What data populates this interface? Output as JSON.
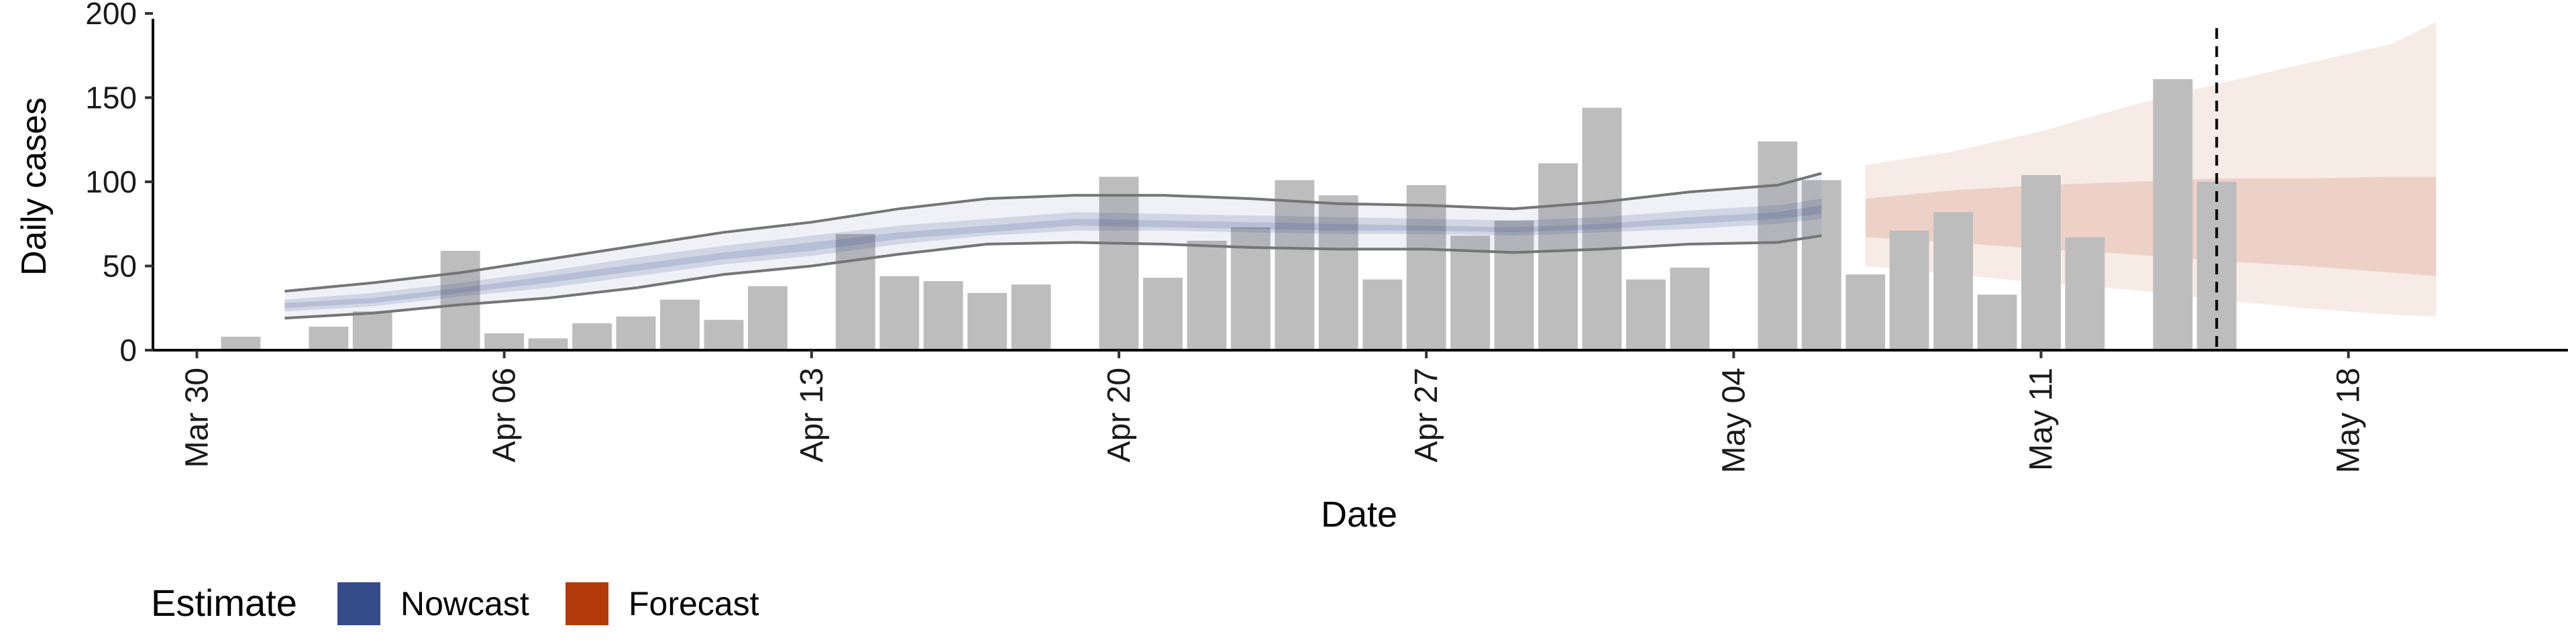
{
  "chart_data": {
    "type": "bar",
    "xlabel": "Date",
    "ylabel": "Daily cases",
    "ylim": [
      0,
      200
    ],
    "xlim": [
      "2020-03-29",
      "2020-05-23"
    ],
    "x_tick_labels": [
      {
        "date": "2020-03-30",
        "label": "Mar 30"
      },
      {
        "date": "2020-04-06",
        "label": "Apr 06"
      },
      {
        "date": "2020-04-13",
        "label": "Apr 13"
      },
      {
        "date": "2020-04-20",
        "label": "Apr 20"
      },
      {
        "date": "2020-04-27",
        "label": "Apr 27"
      },
      {
        "date": "2020-05-04",
        "label": "May 04"
      },
      {
        "date": "2020-05-11",
        "label": "May 11"
      },
      {
        "date": "2020-05-18",
        "label": "May 18"
      }
    ],
    "y_tick_labels": [
      "0",
      "50",
      "100",
      "150",
      "200"
    ],
    "y_ticks": [
      0,
      50,
      100,
      150,
      200
    ],
    "grid": false,
    "reference_line": {
      "date": "2020-05-15",
      "style": "dashed"
    },
    "bars": [
      {
        "date": "2020-03-31",
        "value": 8
      },
      {
        "date": "2020-04-02",
        "value": 14
      },
      {
        "date": "2020-04-03",
        "value": 23
      },
      {
        "date": "2020-04-05",
        "value": 59
      },
      {
        "date": "2020-04-06",
        "value": 10
      },
      {
        "date": "2020-04-07",
        "value": 7
      },
      {
        "date": "2020-04-08",
        "value": 16
      },
      {
        "date": "2020-04-09",
        "value": 20
      },
      {
        "date": "2020-04-10",
        "value": 30
      },
      {
        "date": "2020-04-11",
        "value": 18
      },
      {
        "date": "2020-04-12",
        "value": 38
      },
      {
        "date": "2020-04-14",
        "value": 69
      },
      {
        "date": "2020-04-15",
        "value": 44
      },
      {
        "date": "2020-04-16",
        "value": 41
      },
      {
        "date": "2020-04-17",
        "value": 34
      },
      {
        "date": "2020-04-18",
        "value": 39
      },
      {
        "date": "2020-04-20",
        "value": 103
      },
      {
        "date": "2020-04-21",
        "value": 43
      },
      {
        "date": "2020-04-22",
        "value": 65
      },
      {
        "date": "2020-04-23",
        "value": 73
      },
      {
        "date": "2020-04-24",
        "value": 101
      },
      {
        "date": "2020-04-25",
        "value": 92
      },
      {
        "date": "2020-04-26",
        "value": 42
      },
      {
        "date": "2020-04-27",
        "value": 98
      },
      {
        "date": "2020-04-28",
        "value": 68
      },
      {
        "date": "2020-04-29",
        "value": 77
      },
      {
        "date": "2020-04-30",
        "value": 111
      },
      {
        "date": "2020-05-01",
        "value": 144
      },
      {
        "date": "2020-05-02",
        "value": 42
      },
      {
        "date": "2020-05-03",
        "value": 49
      },
      {
        "date": "2020-05-05",
        "value": 124
      },
      {
        "date": "2020-05-06",
        "value": 101
      },
      {
        "date": "2020-05-07",
        "value": 45
      },
      {
        "date": "2020-05-08",
        "value": 71
      },
      {
        "date": "2020-05-09",
        "value": 82
      },
      {
        "date": "2020-05-10",
        "value": 33
      },
      {
        "date": "2020-05-11",
        "value": 104
      },
      {
        "date": "2020-05-12",
        "value": 67
      },
      {
        "date": "2020-05-14",
        "value": 161
      },
      {
        "date": "2020-05-15",
        "value": 100
      }
    ],
    "nowcast": {
      "dates": [
        "2020-04-01",
        "2020-04-03",
        "2020-04-05",
        "2020-04-07",
        "2020-04-09",
        "2020-04-11",
        "2020-04-13",
        "2020-04-15",
        "2020-04-17",
        "2020-04-19",
        "2020-04-21",
        "2020-04-23",
        "2020-04-25",
        "2020-04-27",
        "2020-04-29",
        "2020-05-01",
        "2020-05-03",
        "2020-05-05",
        "2020-05-06"
      ],
      "upper_90": [
        35,
        40,
        46,
        54,
        62,
        70,
        76,
        84,
        90,
        92,
        92,
        90,
        87,
        86,
        84,
        88,
        94,
        98,
        105
      ],
      "lower_90": [
        19,
        22,
        27,
        31,
        37,
        45,
        50,
        57,
        63,
        64,
        63,
        61,
        60,
        60,
        58,
        60,
        63,
        64,
        68
      ],
      "upper_50": [
        30,
        34,
        40,
        47,
        55,
        62,
        68,
        74,
        78,
        82,
        81,
        80,
        79,
        78,
        77,
        79,
        83,
        86,
        90
      ],
      "lower_50": [
        23,
        26,
        32,
        37,
        44,
        51,
        56,
        63,
        68,
        71,
        71,
        70,
        69,
        69,
        68,
        70,
        72,
        75,
        78
      ],
      "upper_20": [
        28,
        31,
        37,
        44,
        51,
        58,
        64,
        70,
        74,
        78,
        77,
        76,
        75,
        74,
        73,
        75,
        79,
        82,
        86
      ],
      "lower_20": [
        25,
        28,
        34,
        40,
        47,
        54,
        59,
        66,
        70,
        74,
        73,
        72,
        71,
        71,
        70,
        72,
        75,
        78,
        81
      ]
    },
    "forecast": {
      "dates": [
        "2020-05-07",
        "2020-05-09",
        "2020-05-11",
        "2020-05-13",
        "2020-05-15",
        "2020-05-17",
        "2020-05-19",
        "2020-05-20"
      ],
      "upper_90": [
        110,
        118,
        130,
        145,
        158,
        170,
        182,
        195
      ],
      "lower_90": [
        50,
        45,
        40,
        36,
        30,
        25,
        21,
        20
      ],
      "upper_50": [
        90,
        95,
        98,
        100,
        102,
        102,
        103,
        103
      ],
      "lower_50": [
        67,
        64,
        60,
        57,
        53,
        50,
        46,
        44
      ]
    },
    "legend": {
      "title": "Estimate",
      "position": "bottom-left",
      "items": [
        {
          "label": "Nowcast",
          "color": "#344c8a"
        },
        {
          "label": "Forecast",
          "color": "#b33a0b"
        }
      ]
    },
    "colors": {
      "bar": "#bdbdbd",
      "nowcast": "#344c8a",
      "forecast": "#b33a0b",
      "line": "#757575",
      "axis": "#000000"
    }
  }
}
